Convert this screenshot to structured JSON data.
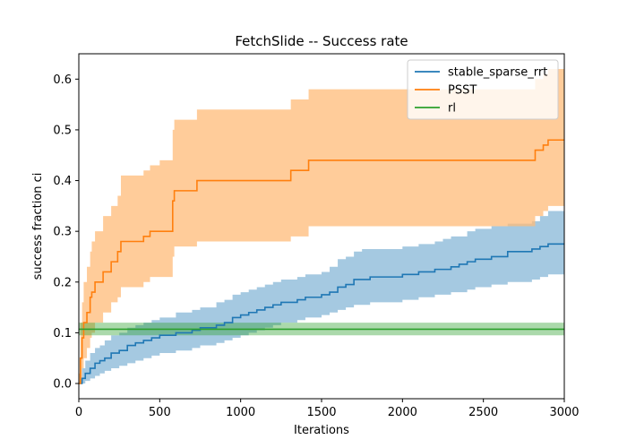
{
  "chart_data": {
    "type": "line",
    "title": "FetchSlide -- Success rate",
    "xlabel": "Iterations",
    "ylabel": "success fraction ci",
    "xlim": [
      0,
      3000
    ],
    "ylim": [
      -0.03,
      0.65
    ],
    "xticks": [
      0,
      500,
      1000,
      1500,
      2000,
      2500,
      3000
    ],
    "yticks": [
      0.0,
      0.1,
      0.2,
      0.3,
      0.4,
      0.5,
      0.6
    ],
    "ytick_labels": [
      "0.0",
      "0.1",
      "0.2",
      "0.3",
      "0.4",
      "0.5",
      "0.6"
    ],
    "grid": false,
    "legend_position": "top-right",
    "series": [
      {
        "name": "stable_sparse_rrt",
        "color": "#1f77b4",
        "fill_color": "#1f77b4",
        "step": true,
        "x": [
          0,
          20,
          40,
          70,
          100,
          130,
          160,
          200,
          250,
          300,
          350,
          400,
          450,
          500,
          600,
          700,
          750,
          850,
          900,
          950,
          1000,
          1050,
          1100,
          1150,
          1200,
          1250,
          1300,
          1350,
          1400,
          1450,
          1500,
          1550,
          1600,
          1650,
          1700,
          1750,
          1800,
          1900,
          2000,
          2050,
          2100,
          2200,
          2250,
          2300,
          2350,
          2400,
          2450,
          2500,
          2550,
          2650,
          2700,
          2800,
          2850,
          2900,
          3000
        ],
        "y": [
          0.0,
          0.01,
          0.02,
          0.03,
          0.04,
          0.045,
          0.05,
          0.06,
          0.065,
          0.075,
          0.08,
          0.085,
          0.09,
          0.095,
          0.1,
          0.105,
          0.11,
          0.115,
          0.12,
          0.13,
          0.135,
          0.14,
          0.145,
          0.15,
          0.155,
          0.16,
          0.16,
          0.165,
          0.17,
          0.17,
          0.175,
          0.18,
          0.19,
          0.195,
          0.205,
          0.205,
          0.21,
          0.21,
          0.215,
          0.215,
          0.22,
          0.225,
          0.225,
          0.23,
          0.235,
          0.24,
          0.245,
          0.245,
          0.25,
          0.26,
          0.26,
          0.265,
          0.27,
          0.275,
          0.275
        ],
        "lower": [
          0.0,
          0.0,
          0.005,
          0.01,
          0.015,
          0.02,
          0.025,
          0.03,
          0.035,
          0.04,
          0.045,
          0.05,
          0.055,
          0.06,
          0.065,
          0.07,
          0.075,
          0.08,
          0.085,
          0.09,
          0.095,
          0.1,
          0.105,
          0.11,
          0.115,
          0.12,
          0.12,
          0.125,
          0.13,
          0.13,
          0.135,
          0.14,
          0.145,
          0.15,
          0.155,
          0.155,
          0.16,
          0.16,
          0.165,
          0.165,
          0.17,
          0.175,
          0.175,
          0.18,
          0.18,
          0.185,
          0.19,
          0.19,
          0.195,
          0.2,
          0.2,
          0.205,
          0.21,
          0.215,
          0.215
        ],
        "upper": [
          0.005,
          0.03,
          0.045,
          0.06,
          0.07,
          0.075,
          0.085,
          0.095,
          0.1,
          0.11,
          0.115,
          0.12,
          0.125,
          0.13,
          0.14,
          0.145,
          0.15,
          0.16,
          0.165,
          0.175,
          0.18,
          0.185,
          0.19,
          0.195,
          0.2,
          0.205,
          0.205,
          0.21,
          0.215,
          0.215,
          0.22,
          0.23,
          0.245,
          0.25,
          0.26,
          0.265,
          0.265,
          0.265,
          0.27,
          0.27,
          0.275,
          0.28,
          0.285,
          0.29,
          0.29,
          0.3,
          0.305,
          0.305,
          0.31,
          0.315,
          0.315,
          0.32,
          0.33,
          0.34,
          0.34
        ]
      },
      {
        "name": "PSST",
        "color": "#ff7f0e",
        "fill_color": "#ffbb78",
        "step": true,
        "x": [
          0,
          10,
          20,
          30,
          50,
          70,
          80,
          100,
          150,
          200,
          240,
          260,
          300,
          400,
          440,
          500,
          580,
          590,
          600,
          730,
          800,
          1000,
          1300,
          1310,
          1420,
          1500,
          2000,
          2500,
          2820,
          2850,
          2870,
          2900,
          3000
        ],
        "y": [
          0.0,
          0.05,
          0.09,
          0.12,
          0.14,
          0.17,
          0.18,
          0.2,
          0.22,
          0.24,
          0.26,
          0.28,
          0.28,
          0.29,
          0.3,
          0.3,
          0.36,
          0.38,
          0.38,
          0.4,
          0.4,
          0.4,
          0.4,
          0.42,
          0.44,
          0.44,
          0.44,
          0.44,
          0.46,
          0.46,
          0.47,
          0.48,
          0.48
        ],
        "lower": [
          0.0,
          0.0,
          0.03,
          0.05,
          0.07,
          0.09,
          0.1,
          0.12,
          0.14,
          0.16,
          0.17,
          0.19,
          0.19,
          0.2,
          0.21,
          0.21,
          0.25,
          0.27,
          0.27,
          0.28,
          0.28,
          0.28,
          0.28,
          0.29,
          0.31,
          0.31,
          0.31,
          0.31,
          0.33,
          0.33,
          0.34,
          0.35,
          0.35
        ],
        "upper": [
          0.02,
          0.12,
          0.16,
          0.2,
          0.23,
          0.26,
          0.28,
          0.3,
          0.33,
          0.35,
          0.37,
          0.41,
          0.41,
          0.42,
          0.43,
          0.44,
          0.5,
          0.52,
          0.52,
          0.54,
          0.54,
          0.54,
          0.54,
          0.56,
          0.58,
          0.58,
          0.58,
          0.58,
          0.6,
          0.6,
          0.61,
          0.62,
          0.62
        ]
      },
      {
        "name": "rl",
        "color": "#2ca02c",
        "fill_color": "#2ca02c",
        "step": false,
        "x": [
          0,
          3000
        ],
        "y": [
          0.107,
          0.107
        ],
        "lower": [
          0.095,
          0.095
        ],
        "upper": [
          0.12,
          0.12
        ]
      }
    ]
  }
}
